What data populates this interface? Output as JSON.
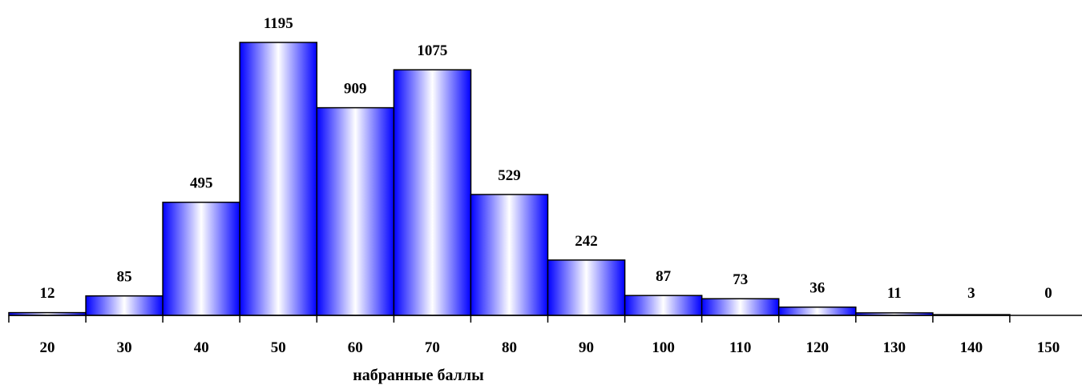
{
  "chart_data": {
    "type": "bar",
    "categories": [
      "20",
      "30",
      "40",
      "50",
      "60",
      "70",
      "80",
      "90",
      "100",
      "110",
      "120",
      "130",
      "140",
      "150"
    ],
    "values": [
      12,
      85,
      495,
      1195,
      909,
      1075,
      529,
      242,
      87,
      73,
      36,
      11,
      3,
      0
    ],
    "xlabel": "набранные баллы",
    "ylabel": "",
    "ylim": [
      0,
      1195
    ],
    "bar_fill": "gradient",
    "colors": {
      "bar_edge": "#0000ff",
      "bar_center": "#ffffff",
      "bar_outline": "#000000"
    },
    "grid": false,
    "legend": "none"
  }
}
